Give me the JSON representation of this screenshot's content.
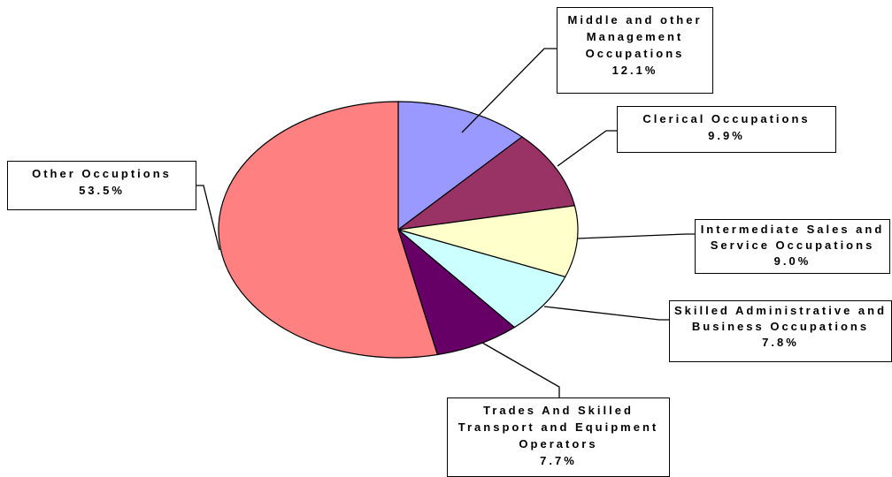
{
  "chart_data": {
    "type": "pie",
    "categories": [
      "Middle and other Management Occupations",
      "Clerical Occupations",
      "Intermediate Sales and Service Occupations",
      "Skilled Administrative and Business Occupations",
      "Trades And Skilled Transport and Equipment Operators",
      "Other Occuptions"
    ],
    "values": [
      12.1,
      9.9,
      9.0,
      7.8,
      7.7,
      53.5
    ],
    "value_labels": [
      "12.1%",
      "9.9%",
      "9.0%",
      "7.8%",
      "7.7%",
      "53.5%"
    ],
    "colors": [
      "#9999ff",
      "#993366",
      "#ffffcc",
      "#ccffff",
      "#660066",
      "#ff8080"
    ]
  }
}
